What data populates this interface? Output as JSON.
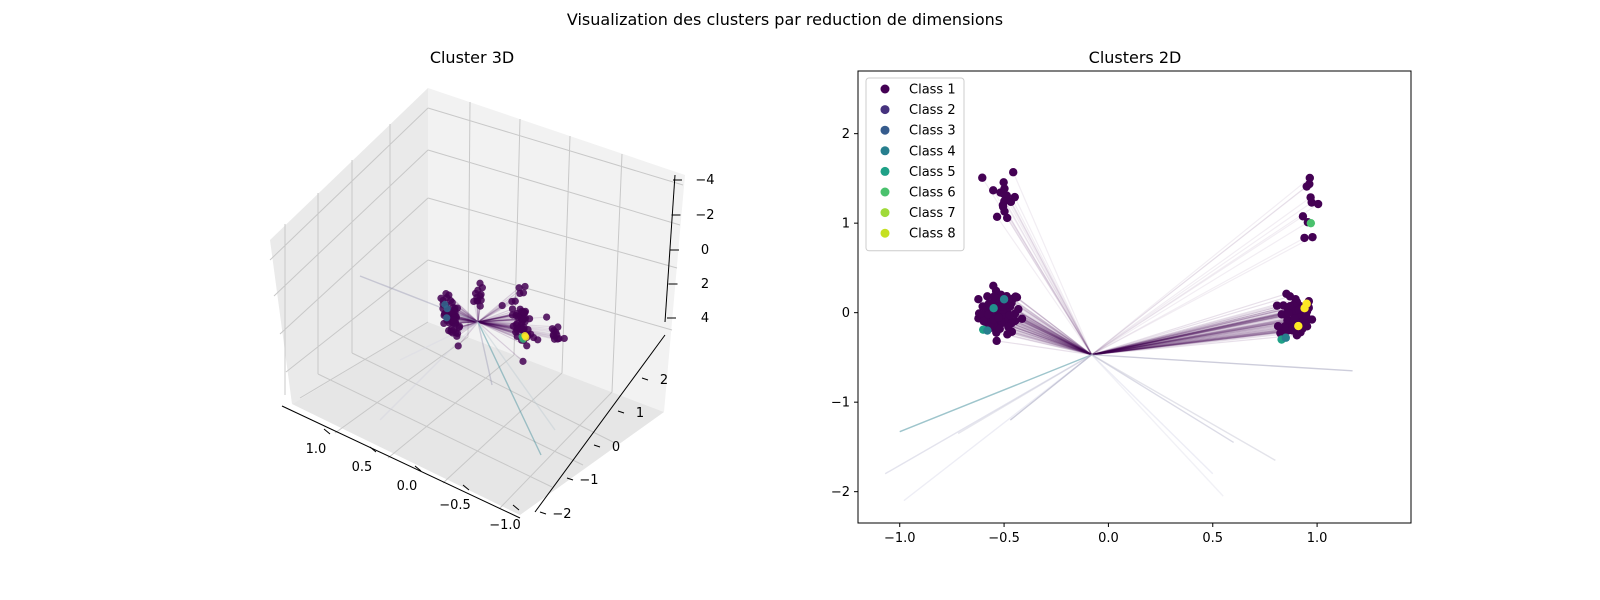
{
  "figure": {
    "suptitle": "Visualization des clusters par reduction de dimensions"
  },
  "chart_data": [
    {
      "type": "scatter",
      "projection": "3d",
      "title": "Cluster 3D",
      "xlabel": "",
      "ylabel": "",
      "zlabel": "",
      "x_ticks": [
        "1.0",
        "0.5",
        "0.0",
        "−0.5",
        "−1.0"
      ],
      "y_ticks": [
        "−2",
        "−1",
        "0",
        "1",
        "2"
      ],
      "z_ticks": [
        "−4",
        "−2",
        "0",
        "2",
        "4"
      ],
      "xlim": [
        -1.2,
        1.3
      ],
      "ylim": [
        -2.2,
        2.8
      ],
      "zlim": [
        -4.5,
        4.5
      ],
      "grid": true,
      "background": "light grey panes",
      "centroid": [
        0.0,
        0.0,
        0.0
      ],
      "series": [
        {
          "color": "#440154",
          "clusters": [
            {
              "center": [
                0.9,
                0.1,
                -0.3
              ],
              "spread": 0.15,
              "n": 60
            },
            {
              "center": [
                -0.5,
                -0.1,
                0.3
              ],
              "spread": 0.12,
              "n": 60
            },
            {
              "center": [
                0.95,
                1.4,
                -0.6
              ],
              "spread": 0.1,
              "n": 12
            },
            {
              "center": [
                -0.5,
                1.3,
                1.5
              ],
              "spread": 0.1,
              "n": 12
            }
          ]
        },
        {
          "color": "#31688e",
          "clusters": [
            {
              "center": [
                -0.55,
                -0.2,
                0.6
              ],
              "spread": 0.05,
              "n": 3
            }
          ]
        },
        {
          "color": "#35b779",
          "clusters": [
            {
              "center": [
                0.9,
                -0.05,
                -1.0
              ],
              "spread": 0.04,
              "n": 2
            }
          ]
        },
        {
          "color": "#fde725",
          "clusters": [
            {
              "center": [
                0.9,
                0.05,
                -0.8
              ],
              "spread": 0.04,
              "n": 2
            }
          ]
        }
      ]
    },
    {
      "type": "scatter",
      "title": "Clusters 2D",
      "xlabel": "",
      "ylabel": "",
      "xlim": [
        -1.2,
        1.45
      ],
      "ylim": [
        -2.35,
        2.7
      ],
      "x_ticks": [
        -1.0,
        -0.5,
        0.0,
        0.5,
        1.0
      ],
      "y_ticks": [
        -2,
        -1,
        0,
        1,
        2
      ],
      "grid": false,
      "legend_position": "top-left",
      "centroid": [
        -0.08,
        -0.47
      ],
      "legend": [
        {
          "label": "Class 1",
          "color": "#440154"
        },
        {
          "label": "Class 2",
          "color": "#46327e"
        },
        {
          "label": "Class 3",
          "color": "#365c8d"
        },
        {
          "label": "Class 4",
          "color": "#277f8e"
        },
        {
          "label": "Class 5",
          "color": "#1fa187"
        },
        {
          "label": "Class 6",
          "color": "#4ac16d"
        },
        {
          "label": "Class 7",
          "color": "#a0da39"
        },
        {
          "label": "Class 8",
          "color": "#c5e021"
        }
      ],
      "clusters": [
        {
          "name": "left-main",
          "center": [
            -0.52,
            0.0
          ],
          "spread": [
            0.05,
            0.12
          ],
          "n": 80,
          "color": "#440154"
        },
        {
          "name": "right-main",
          "center": [
            0.9,
            -0.05
          ],
          "spread": [
            0.04,
            0.12
          ],
          "n": 80,
          "color": "#440154"
        },
        {
          "name": "upper-left",
          "center": [
            -0.5,
            1.3
          ],
          "spread": [
            0.03,
            0.18
          ],
          "n": 16,
          "color": "#440154"
        },
        {
          "name": "upper-right",
          "center": [
            0.96,
            1.3
          ],
          "spread": [
            0.02,
            0.22
          ],
          "n": 10,
          "color": "#440154"
        }
      ],
      "highlight_points": [
        {
          "x": -0.6,
          "y": -0.19,
          "color": "#1fa187"
        },
        {
          "x": -0.58,
          "y": -0.2,
          "color": "#277f8e"
        },
        {
          "x": -0.55,
          "y": 0.05,
          "color": "#21918c"
        },
        {
          "x": 0.83,
          "y": -0.3,
          "color": "#1fa187"
        },
        {
          "x": 0.85,
          "y": -0.28,
          "color": "#277f8e"
        },
        {
          "x": 0.91,
          "y": -0.15,
          "color": "#fde725"
        },
        {
          "x": 0.94,
          "y": 0.05,
          "color": "#fde725"
        },
        {
          "x": 0.95,
          "y": 0.1,
          "color": "#fde725"
        },
        {
          "x": 0.97,
          "y": 1.0,
          "color": "#4ac16d"
        },
        {
          "x": -0.5,
          "y": 0.15,
          "color": "#277f8e"
        }
      ],
      "outlier_line_ends": [
        {
          "x": -1.0,
          "y": -1.33,
          "color": "#277f8e"
        },
        {
          "x": -1.07,
          "y": -1.8,
          "color": "#c0c0d8"
        },
        {
          "x": -0.98,
          "y": -2.1,
          "color": "#d8d8e8"
        },
        {
          "x": -0.72,
          "y": -1.35,
          "color": "#c8c8d8"
        },
        {
          "x": -0.47,
          "y": -1.2,
          "color": "#9090b0"
        },
        {
          "x": 0.5,
          "y": -1.8,
          "color": "#d8d8e8"
        },
        {
          "x": 0.6,
          "y": -1.45,
          "color": "#b0b0c8"
        },
        {
          "x": 0.8,
          "y": -1.65,
          "color": "#c0c0d0"
        },
        {
          "x": 1.17,
          "y": -0.65,
          "color": "#9090b0"
        },
        {
          "x": 0.55,
          "y": -2.05,
          "color": "#e0e0ec"
        }
      ]
    }
  ]
}
